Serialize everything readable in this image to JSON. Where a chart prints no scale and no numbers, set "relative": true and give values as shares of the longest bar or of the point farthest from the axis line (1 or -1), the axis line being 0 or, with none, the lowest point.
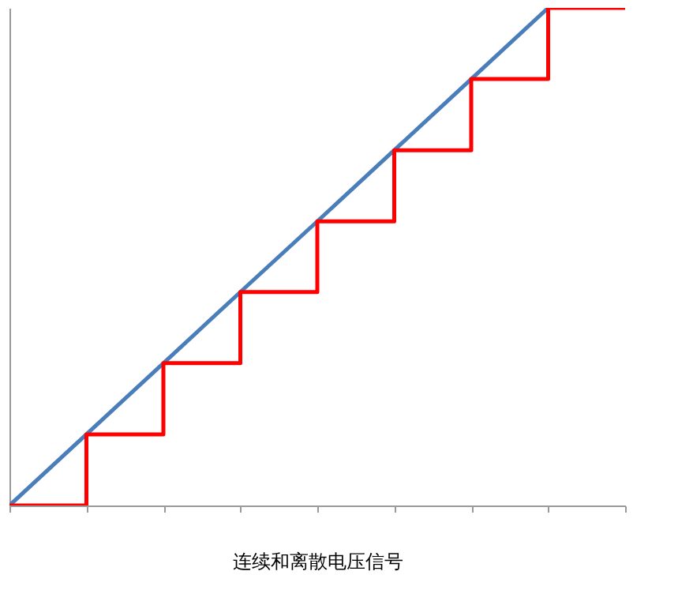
{
  "chart_data": {
    "type": "line",
    "xlabel": "连续和离散电压信号",
    "relative": true,
    "categories": [
      null,
      null,
      null,
      null,
      null,
      null,
      null,
      null,
      null
    ],
    "series": [
      {
        "color": "#4a7ebb",
        "values": [
          0,
          0.143,
          0.286,
          0.429,
          0.571,
          0.714,
          0.857,
          1,
          null
        ]
      },
      {
        "type": "step",
        "color": "#ff0000",
        "values": [
          0,
          0.143,
          0.286,
          0.429,
          0.571,
          0.714,
          0.857,
          1,
          1
        ]
      }
    ]
  }
}
